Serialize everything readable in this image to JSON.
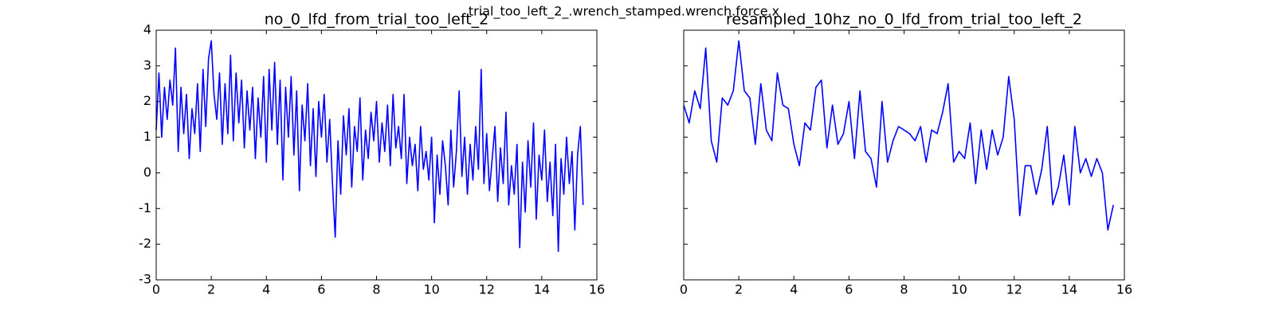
{
  "suptitle": "trial_too_left_2_.wrench_stamped.wrench.force.x",
  "chart_data": [
    {
      "type": "line",
      "title": "no_0_lfd_from_trial_too_left_2",
      "color": "#0000ff",
      "xlim": [
        0,
        16
      ],
      "xticks": [
        0,
        2,
        4,
        6,
        8,
        10,
        12,
        14,
        16
      ],
      "ylim": [
        -3,
        4
      ],
      "yticks": [
        -3,
        -2,
        -1,
        0,
        1,
        2,
        3,
        4
      ],
      "show_ytick_labels": true,
      "x": [
        0,
        0.1,
        0.2,
        0.3,
        0.4,
        0.5,
        0.6,
        0.7,
        0.8,
        0.9,
        1,
        1.1,
        1.2,
        1.3,
        1.4,
        1.5,
        1.6,
        1.7,
        1.8,
        1.9,
        2,
        2.1,
        2.2,
        2.3,
        2.4,
        2.5,
        2.6,
        2.7,
        2.8,
        2.9,
        3,
        3.1,
        3.2,
        3.3,
        3.4,
        3.5,
        3.6,
        3.7,
        3.8,
        3.9,
        4,
        4.1,
        4.2,
        4.3,
        4.4,
        4.5,
        4.6,
        4.7,
        4.8,
        4.9,
        5,
        5.1,
        5.2,
        5.3,
        5.4,
        5.5,
        5.6,
        5.7,
        5.8,
        5.9,
        6,
        6.1,
        6.2,
        6.3,
        6.4,
        6.5,
        6.6,
        6.7,
        6.8,
        6.9,
        7,
        7.1,
        7.2,
        7.3,
        7.4,
        7.5,
        7.6,
        7.7,
        7.8,
        7.9,
        8,
        8.1,
        8.2,
        8.3,
        8.4,
        8.5,
        8.6,
        8.7,
        8.8,
        8.9,
        9,
        9.1,
        9.2,
        9.3,
        9.4,
        9.5,
        9.6,
        9.7,
        9.8,
        9.9,
        10,
        10.1,
        10.2,
        10.3,
        10.4,
        10.5,
        10.6,
        10.7,
        10.8,
        10.9,
        11,
        11.1,
        11.2,
        11.3,
        11.4,
        11.5,
        11.6,
        11.7,
        11.8,
        11.9,
        12,
        12.1,
        12.2,
        12.3,
        12.4,
        12.5,
        12.6,
        12.7,
        12.8,
        12.9,
        13,
        13.1,
        13.2,
        13.3,
        13.4,
        13.5,
        13.6,
        13.7,
        13.8,
        13.9,
        14,
        14.1,
        14.2,
        14.3,
        14.4,
        14.5,
        14.6,
        14.7,
        14.8,
        14.9,
        15,
        15.1,
        15.2,
        15.3,
        15.4,
        15.5
      ],
      "values": [
        1.2,
        2.8,
        1.0,
        2.4,
        1.5,
        2.6,
        1.9,
        3.5,
        0.6,
        2.4,
        1.1,
        2.2,
        0.4,
        1.8,
        1.1,
        2.5,
        0.6,
        2.9,
        1.3,
        3.2,
        3.7,
        2.2,
        1.5,
        2.8,
        0.8,
        2.5,
        1.1,
        3.3,
        0.9,
        2.8,
        1.4,
        2.6,
        0.7,
        2.3,
        1.2,
        2.4,
        0.4,
        2.1,
        1.0,
        2.7,
        0.3,
        2.9,
        1.2,
        3.1,
        0.8,
        2.6,
        -0.2,
        2.4,
        1.0,
        2.7,
        0.5,
        2.3,
        -0.5,
        1.9,
        0.9,
        2.5,
        0.2,
        1.8,
        -0.1,
        2.0,
        1.0,
        2.2,
        0.3,
        1.5,
        -0.3,
        -1.8,
        0.9,
        -0.6,
        1.6,
        0.5,
        1.8,
        -0.4,
        1.3,
        0.6,
        2.1,
        -0.2,
        1.2,
        0.4,
        1.7,
        0.9,
        2.0,
        0.3,
        1.4,
        0.6,
        1.9,
        0.2,
        2.2,
        0.7,
        1.3,
        0.4,
        2.2,
        -0.3,
        1.0,
        0.2,
        0.8,
        -0.5,
        1.3,
        0.1,
        0.6,
        -0.2,
        1.0,
        -1.4,
        0.5,
        -0.6,
        0.9,
        0.2,
        -0.9,
        1.2,
        -0.4,
        0.6,
        2.3,
        -0.1,
        1.0,
        -0.6,
        0.8,
        -0.2,
        1.3,
        0.1,
        2.9,
        -0.3,
        1.1,
        -0.5,
        0.4,
        1.3,
        -0.8,
        0.7,
        -0.3,
        1.7,
        -0.9,
        0.2,
        -0.6,
        0.8,
        -2.1,
        0.3,
        -1.1,
        0.9,
        -0.4,
        1.4,
        -1.3,
        0.5,
        -0.2,
        1.2,
        -0.8,
        0.3,
        -1.2,
        0.8,
        -2.2,
        0.4,
        -0.6,
        1.0,
        -0.3,
        0.6,
        -1.6,
        0.5,
        1.3,
        -0.9
      ]
    },
    {
      "type": "line",
      "title": "resampled_10hz_no_0_lfd_from_trial_too_left_2",
      "color": "#0000ff",
      "xlim": [
        0,
        16
      ],
      "xticks": [
        0,
        2,
        4,
        6,
        8,
        10,
        12,
        14,
        16
      ],
      "ylim": [
        -3,
        4
      ],
      "yticks": [
        -3,
        -2,
        -1,
        0,
        1,
        2,
        3,
        4
      ],
      "show_ytick_labels": false,
      "x": [
        0,
        0.2,
        0.4,
        0.6,
        0.8,
        1,
        1.2,
        1.4,
        1.6,
        1.8,
        2,
        2.2,
        2.4,
        2.6,
        2.8,
        3,
        3.2,
        3.4,
        3.6,
        3.8,
        4,
        4.2,
        4.4,
        4.6,
        4.8,
        5,
        5.2,
        5.4,
        5.6,
        5.8,
        6,
        6.2,
        6.4,
        6.6,
        6.8,
        7,
        7.2,
        7.4,
        7.6,
        7.8,
        8,
        8.2,
        8.4,
        8.6,
        8.8,
        9,
        9.2,
        9.4,
        9.6,
        9.8,
        10,
        10.2,
        10.4,
        10.6,
        10.8,
        11,
        11.2,
        11.4,
        11.6,
        11.8,
        12,
        12.2,
        12.4,
        12.6,
        12.8,
        13,
        13.2,
        13.4,
        13.6,
        13.8,
        14,
        14.2,
        14.4,
        14.6,
        14.8,
        15,
        15.2,
        15.4,
        15.6
      ],
      "values": [
        1.9,
        1.4,
        2.3,
        1.8,
        3.5,
        0.9,
        0.3,
        2.1,
        1.9,
        2.3,
        3.7,
        2.3,
        2.1,
        0.8,
        2.5,
        1.2,
        0.9,
        2.8,
        1.9,
        1.8,
        0.8,
        0.2,
        1.4,
        1.2,
        2.4,
        2.6,
        0.7,
        1.9,
        0.8,
        1.1,
        2.0,
        0.4,
        2.3,
        0.6,
        0.4,
        -0.4,
        2.0,
        0.3,
        0.9,
        1.3,
        1.2,
        1.1,
        0.9,
        1.3,
        0.3,
        1.2,
        1.1,
        1.7,
        2.5,
        0.3,
        0.6,
        0.4,
        1.4,
        -0.3,
        1.2,
        0.1,
        1.2,
        0.5,
        1.0,
        2.7,
        1.5,
        -1.2,
        0.2,
        0.2,
        -0.6,
        0.1,
        1.3,
        -0.9,
        -0.4,
        0.5,
        -0.9,
        1.3,
        0.0,
        0.4,
        -0.1,
        0.4,
        0.0,
        -1.6,
        -0.9
      ]
    }
  ]
}
